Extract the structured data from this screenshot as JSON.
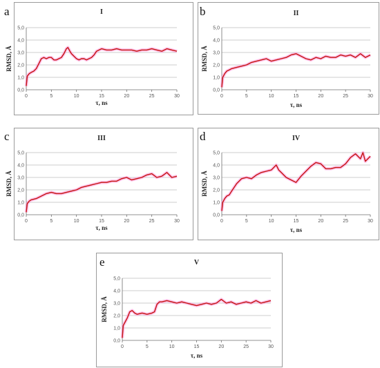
{
  "chart_data": [
    {
      "type": "line",
      "panel_letter": "a",
      "title": "I",
      "xlabel": "τ, ns",
      "ylabel": "RMSD, Å",
      "xlim": [
        0,
        30
      ],
      "ylim": [
        0,
        5
      ],
      "xticks": [
        "0",
        "5",
        "10",
        "15",
        "20",
        "25",
        "30"
      ],
      "yticks": [
        "0,0",
        "1,0",
        "2,0",
        "3,0",
        "4,0",
        "5,0"
      ],
      "grid": true,
      "series": [
        {
          "values": [
            [
              0,
              0.3
            ],
            [
              0.2,
              1.1
            ],
            [
              0.6,
              1.3
            ],
            [
              1,
              1.4
            ],
            [
              1.5,
              1.5
            ],
            [
              2,
              1.7
            ],
            [
              2.5,
              2.1
            ],
            [
              3,
              2.5
            ],
            [
              3.5,
              2.6
            ],
            [
              4,
              2.5
            ],
            [
              4.5,
              2.6
            ],
            [
              5,
              2.6
            ],
            [
              5.5,
              2.4
            ],
            [
              6,
              2.4
            ],
            [
              6.5,
              2.5
            ],
            [
              7,
              2.6
            ],
            [
              7.5,
              2.9
            ],
            [
              8,
              3.3
            ],
            [
              8.3,
              3.4
            ],
            [
              8.7,
              3.1
            ],
            [
              9,
              2.9
            ],
            [
              9.5,
              2.7
            ],
            [
              10,
              2.5
            ],
            [
              10.5,
              2.4
            ],
            [
              11,
              2.5
            ],
            [
              11.5,
              2.5
            ],
            [
              12,
              2.4
            ],
            [
              12.5,
              2.5
            ],
            [
              13,
              2.6
            ],
            [
              13.5,
              2.8
            ],
            [
              14,
              3.1
            ],
            [
              14.5,
              3.2
            ],
            [
              15,
              3.3
            ],
            [
              16,
              3.2
            ],
            [
              17,
              3.2
            ],
            [
              18,
              3.3
            ],
            [
              19,
              3.2
            ],
            [
              20,
              3.2
            ],
            [
              21,
              3.2
            ],
            [
              22,
              3.1
            ],
            [
              23,
              3.2
            ],
            [
              24,
              3.2
            ],
            [
              25,
              3.3
            ],
            [
              26,
              3.2
            ],
            [
              27,
              3.1
            ],
            [
              28,
              3.3
            ],
            [
              29,
              3.2
            ],
            [
              30,
              3.1
            ]
          ]
        }
      ]
    },
    {
      "type": "line",
      "panel_letter": "b",
      "title": "II",
      "xlabel": "τ, ns",
      "ylabel": "RMSD, Å",
      "xlim": [
        0,
        30
      ],
      "ylim": [
        0,
        5
      ],
      "xticks": [
        "0",
        "5",
        "10",
        "15",
        "20",
        "25",
        "30"
      ],
      "yticks": [
        "0,0",
        "1,0",
        "2,0",
        "3,0",
        "4,0",
        "5,0"
      ],
      "grid": true,
      "series": [
        {
          "values": [
            [
              0,
              0.2
            ],
            [
              0.2,
              1.0
            ],
            [
              0.6,
              1.3
            ],
            [
              1,
              1.5
            ],
            [
              1.5,
              1.6
            ],
            [
              2,
              1.7
            ],
            [
              3,
              1.8
            ],
            [
              4,
              1.9
            ],
            [
              5,
              2.0
            ],
            [
              6,
              2.2
            ],
            [
              7,
              2.3
            ],
            [
              8,
              2.4
            ],
            [
              9,
              2.5
            ],
            [
              10,
              2.3
            ],
            [
              11,
              2.4
            ],
            [
              12,
              2.5
            ],
            [
              13,
              2.6
            ],
            [
              14,
              2.8
            ],
            [
              15,
              2.9
            ],
            [
              16,
              2.7
            ],
            [
              17,
              2.5
            ],
            [
              18,
              2.4
            ],
            [
              19,
              2.6
            ],
            [
              20,
              2.5
            ],
            [
              21,
              2.7
            ],
            [
              22,
              2.6
            ],
            [
              23,
              2.6
            ],
            [
              24,
              2.8
            ],
            [
              25,
              2.7
            ],
            [
              26,
              2.8
            ],
            [
              27,
              2.6
            ],
            [
              28,
              2.9
            ],
            [
              29,
              2.6
            ],
            [
              30,
              2.8
            ]
          ]
        }
      ]
    },
    {
      "type": "line",
      "panel_letter": "c",
      "title": "III",
      "xlabel": "τ, ns",
      "ylabel": "RMSD, Å",
      "xlim": [
        0,
        30
      ],
      "ylim": [
        0,
        5
      ],
      "xticks": [
        "0",
        "5",
        "10",
        "15",
        "20",
        "25",
        "30"
      ],
      "yticks": [
        "0,0",
        "1,0",
        "2,0",
        "3,0",
        "4,0",
        "5,0"
      ],
      "grid": true,
      "series": [
        {
          "values": [
            [
              0,
              0.2
            ],
            [
              0.2,
              0.9
            ],
            [
              0.6,
              1.1
            ],
            [
              1,
              1.2
            ],
            [
              2,
              1.3
            ],
            [
              3,
              1.5
            ],
            [
              4,
              1.7
            ],
            [
              5,
              1.8
            ],
            [
              6,
              1.7
            ],
            [
              7,
              1.7
            ],
            [
              8,
              1.8
            ],
            [
              9,
              1.9
            ],
            [
              10,
              2.0
            ],
            [
              11,
              2.2
            ],
            [
              12,
              2.3
            ],
            [
              13,
              2.4
            ],
            [
              14,
              2.5
            ],
            [
              15,
              2.6
            ],
            [
              16,
              2.6
            ],
            [
              17,
              2.7
            ],
            [
              18,
              2.7
            ],
            [
              19,
              2.9
            ],
            [
              20,
              3.0
            ],
            [
              21,
              2.8
            ],
            [
              22,
              2.9
            ],
            [
              23,
              3.0
            ],
            [
              24,
              3.2
            ],
            [
              25,
              3.3
            ],
            [
              26,
              3.0
            ],
            [
              27,
              3.1
            ],
            [
              28,
              3.4
            ],
            [
              29,
              3.0
            ],
            [
              30,
              3.1
            ]
          ]
        }
      ]
    },
    {
      "type": "line",
      "panel_letter": "d",
      "title": "IV",
      "xlabel": "τ, ns",
      "ylabel": "RMSD, Å",
      "xlim": [
        0,
        30
      ],
      "ylim": [
        0,
        5
      ],
      "xticks": [
        "0",
        "5",
        "10",
        "15",
        "20",
        "25",
        "30"
      ],
      "yticks": [
        "0,0",
        "1,0",
        "2,0",
        "3,0",
        "4,0",
        "5,0"
      ],
      "grid": true,
      "series": [
        {
          "values": [
            [
              0,
              0.3
            ],
            [
              0.2,
              1.0
            ],
            [
              0.6,
              1.3
            ],
            [
              1,
              1.5
            ],
            [
              1.5,
              1.6
            ],
            [
              2,
              1.9
            ],
            [
              2.5,
              2.2
            ],
            [
              3,
              2.5
            ],
            [
              3.5,
              2.7
            ],
            [
              4,
              2.9
            ],
            [
              5,
              3.0
            ],
            [
              6,
              2.9
            ],
            [
              7,
              3.2
            ],
            [
              8,
              3.4
            ],
            [
              9,
              3.5
            ],
            [
              10,
              3.6
            ],
            [
              11,
              4.0
            ],
            [
              11.5,
              3.6
            ],
            [
              12,
              3.4
            ],
            [
              13,
              3.0
            ],
            [
              14,
              2.8
            ],
            [
              15,
              2.6
            ],
            [
              16,
              3.1
            ],
            [
              17,
              3.5
            ],
            [
              18,
              3.9
            ],
            [
              19,
              4.2
            ],
            [
              20,
              4.1
            ],
            [
              21,
              3.7
            ],
            [
              22,
              3.7
            ],
            [
              23,
              3.8
            ],
            [
              24,
              3.8
            ],
            [
              25,
              4.1
            ],
            [
              26,
              4.6
            ],
            [
              27,
              4.9
            ],
            [
              28,
              4.5
            ],
            [
              28.5,
              5.0
            ],
            [
              29,
              4.3
            ],
            [
              30,
              4.7
            ]
          ]
        }
      ]
    },
    {
      "type": "line",
      "panel_letter": "e",
      "title": "V",
      "xlabel": "τ, ns",
      "ylabel": "RMSD, Å",
      "xlim": [
        0,
        30
      ],
      "ylim": [
        0,
        5
      ],
      "xticks": [
        "0",
        "5",
        "10",
        "15",
        "20",
        "25",
        "30"
      ],
      "yticks": [
        "0,0",
        "1,0",
        "2,0",
        "3,0",
        "4,0",
        "5,0"
      ],
      "grid": true,
      "series": [
        {
          "values": [
            [
              0,
              0.2
            ],
            [
              0.2,
              1.2
            ],
            [
              0.6,
              1.5
            ],
            [
              1,
              1.8
            ],
            [
              1.5,
              2.3
            ],
            [
              2,
              2.4
            ],
            [
              2.5,
              2.2
            ],
            [
              3,
              2.1
            ],
            [
              4,
              2.2
            ],
            [
              5,
              2.1
            ],
            [
              6,
              2.2
            ],
            [
              6.5,
              2.3
            ],
            [
              7,
              2.9
            ],
            [
              7.5,
              3.1
            ],
            [
              8,
              3.1
            ],
            [
              9,
              3.2
            ],
            [
              10,
              3.1
            ],
            [
              11,
              3.0
            ],
            [
              12,
              3.1
            ],
            [
              13,
              3.0
            ],
            [
              14,
              2.9
            ],
            [
              15,
              2.8
            ],
            [
              16,
              2.9
            ],
            [
              17,
              3.0
            ],
            [
              18,
              2.9
            ],
            [
              19,
              3.0
            ],
            [
              20,
              3.3
            ],
            [
              21,
              3.0
            ],
            [
              22,
              3.1
            ],
            [
              23,
              2.9
            ],
            [
              24,
              3.0
            ],
            [
              25,
              3.1
            ],
            [
              26,
              3.0
            ],
            [
              27,
              3.2
            ],
            [
              28,
              3.0
            ],
            [
              29,
              3.1
            ],
            [
              30,
              3.2
            ]
          ]
        }
      ]
    }
  ]
}
